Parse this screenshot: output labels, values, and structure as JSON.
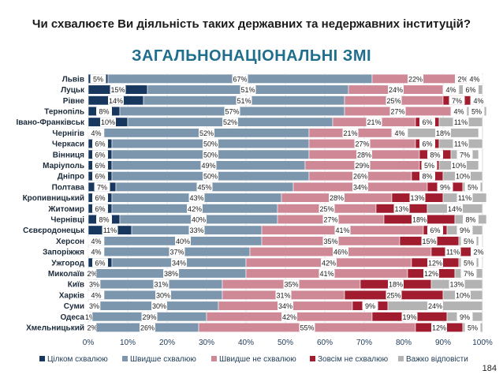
{
  "header": {
    "question": "Чи схвалюєте Ви діяльність таких державних та недержавних інституцій?",
    "subtitle": "ЗАГАЛЬНОНАЦІОНАЛЬНІ ЗМІ"
  },
  "footer": {
    "page_number": "184"
  },
  "chart_data": {
    "type": "bar",
    "orientation": "horizontal",
    "stacked": true,
    "title": "ЗАГАЛЬНОНАЦІОНАЛЬНІ ЗМІ",
    "xlim": [
      0,
      100
    ],
    "x_ticks": [
      "0%",
      "10%",
      "20%",
      "30%",
      "40%",
      "50%",
      "60%",
      "70%",
      "80%",
      "90%",
      "100%"
    ],
    "legend_position": "bottom",
    "grid": "vertical",
    "categories": [
      "Львів",
      "Луцьк",
      "Рівне",
      "Тернопіль",
      "Івано-Франківськ",
      "Чернігів",
      "Черкаси",
      "Вінниця",
      "Маріуполь",
      "Дніпро",
      "Полтава",
      "Кропивницький",
      "Житомир",
      "Чернівці",
      "Сєвєродонецьк",
      "Херсон",
      "Запоріжжя",
      "Ужгород",
      "Миколаїв",
      "Київ",
      "Харків",
      "Суми",
      "Одеса",
      "Хмельницький"
    ],
    "series": [
      {
        "name": "Цілком схвалюю",
        "color": "#17375e",
        "values": [
          5,
          15,
          14,
          8,
          10,
          4,
          6,
          6,
          6,
          6,
          7,
          6,
          6,
          8,
          11,
          4,
          4,
          6,
          2,
          3,
          4,
          3,
          1,
          2
        ]
      },
      {
        "name": "Швидше схвалюю",
        "color": "#7b96ad",
        "values": [
          67,
          51,
          51,
          57,
          52,
          52,
          50,
          50,
          49,
          50,
          45,
          43,
          42,
          40,
          33,
          40,
          37,
          34,
          38,
          31,
          30,
          30,
          29,
          26
        ]
      },
      {
        "name": "Швидше не схвалюю",
        "color": "#cf8896",
        "values": [
          22,
          24,
          25,
          27,
          21,
          21,
          27,
          28,
          29,
          26,
          34,
          28,
          25,
          27,
          41,
          35,
          46,
          42,
          41,
          35,
          31,
          34,
          42,
          55
        ]
      },
      {
        "name": "Зовсім не схвалюю",
        "color": "#a01c2e",
        "values": [
          2,
          4,
          7,
          4,
          6,
          4,
          6,
          8,
          5,
          8,
          9,
          13,
          13,
          18,
          6,
          15,
          11,
          12,
          12,
          18,
          25,
          9,
          19,
          12
        ]
      },
      {
        "name": "Важко відповісти",
        "color": "#b3b3b3",
        "values": [
          4,
          6,
          4,
          5,
          11,
          18,
          11,
          7,
          10,
          10,
          5,
          11,
          14,
          8,
          9,
          5,
          2,
          5,
          7,
          13,
          10,
          24,
          9,
          5
        ]
      }
    ]
  }
}
